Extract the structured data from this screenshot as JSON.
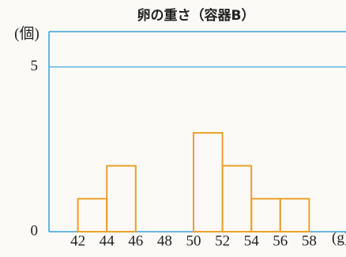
{
  "chart_data": {
    "type": "histogram",
    "title": "卵の重さ（容器B）",
    "y_label": "(個)",
    "x_label": "(g)",
    "bins": [
      42,
      44,
      46,
      48,
      50,
      52,
      54,
      56,
      58
    ],
    "counts": [
      1,
      2,
      0,
      0,
      3,
      2,
      1,
      1
    ],
    "color": "#eaa12a",
    "axis_color": "#3a9fd6",
    "xlim": [
      40,
      60
    ],
    "xticks": [
      42,
      44,
      46,
      48,
      50,
      52,
      54,
      56,
      58
    ],
    "ylim": [
      0,
      6
    ],
    "yticks": [
      0,
      5
    ],
    "grid": true
  }
}
